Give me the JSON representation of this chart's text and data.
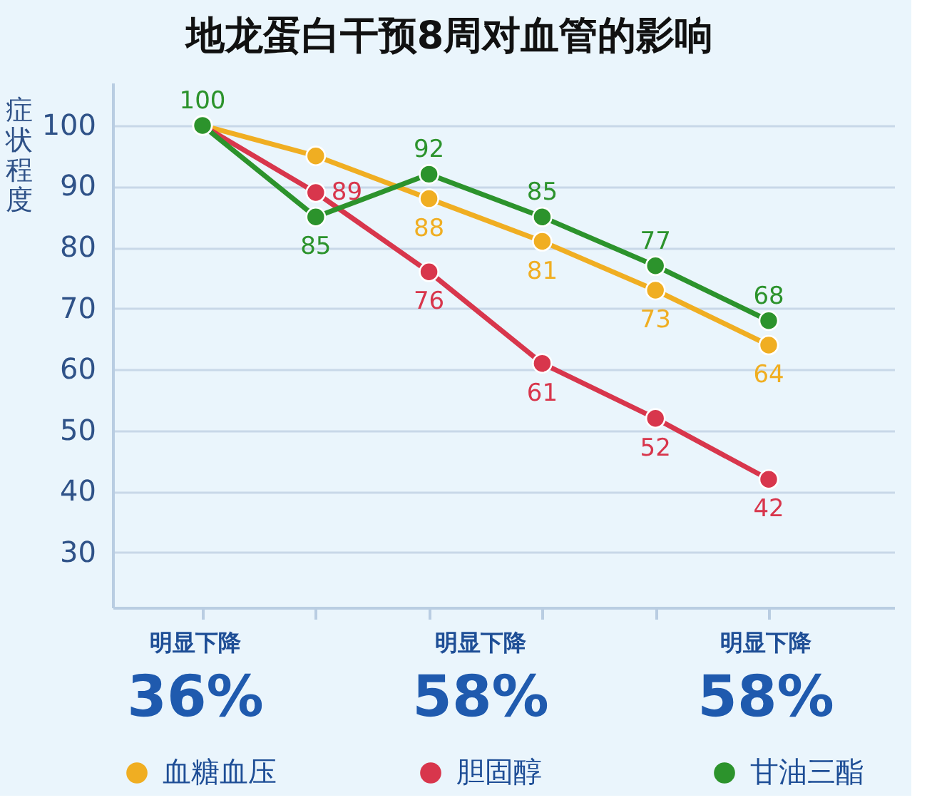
{
  "chart_data": {
    "type": "line",
    "title": "地龙蛋白干预8周对血管的影响",
    "ylabel": "症状程度",
    "categories": [
      null,
      null,
      null,
      null,
      null,
      null
    ],
    "series": [
      {
        "name": "血糖血压",
        "color": "#f0ae22",
        "values": [
          100,
          95,
          88,
          81,
          73,
          64
        ],
        "value_labels": [
          null,
          null,
          "88",
          "81",
          "73",
          "64"
        ]
      },
      {
        "name": "胆固醇",
        "color": "#d8364c",
        "values": [
          100,
          89,
          76,
          61,
          52,
          42
        ],
        "value_labels": [
          null,
          "89",
          "76",
          "61",
          "52",
          "42"
        ]
      },
      {
        "name": "甘油三酯",
        "color": "#2c932c",
        "values": [
          100,
          85,
          92,
          85,
          77,
          68
        ],
        "value_labels": [
          "100",
          "85",
          "92",
          "85",
          "77",
          "68"
        ]
      }
    ],
    "ylim": [
      21,
      107
    ],
    "yticks": [
      30,
      40,
      50,
      60,
      70,
      80,
      90,
      100
    ],
    "grid": "y",
    "legend": "bottom",
    "tick_labels": "y",
    "marker": "circle",
    "line_style": "solid",
    "annotations": [
      "明显下降",
      "36%",
      "明显下降",
      "58%",
      "明显下降",
      "58%"
    ]
  }
}
